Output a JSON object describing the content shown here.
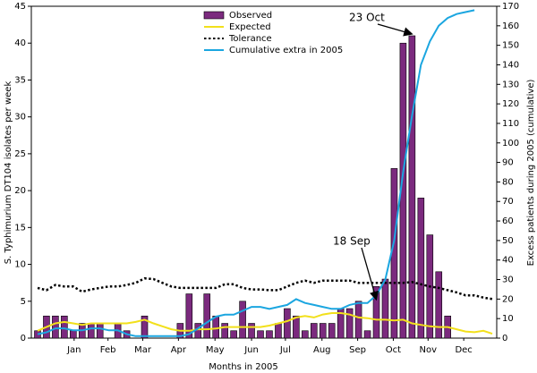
{
  "chart_data": {
    "type": "bar",
    "x_label": "Months in 2005",
    "y_label": "S. Typhimurium DT104 isolates per week",
    "y2_label": "Excess patients during 2005 (cumulative)",
    "x": [
      1,
      2,
      3,
      4,
      5,
      6,
      7,
      8,
      9,
      10,
      11,
      12,
      13,
      14,
      15,
      16,
      17,
      18,
      19,
      20,
      21,
      22,
      23,
      24,
      25,
      26,
      27,
      28,
      29,
      30,
      31,
      32,
      33,
      34,
      35,
      36,
      37,
      38,
      39,
      40,
      41,
      42,
      43,
      44,
      45,
      46,
      47,
      48,
      49,
      50,
      51,
      52
    ],
    "xlim": [
      0.3,
      52.5
    ],
    "xticks": [
      {
        "value": 5.1,
        "label": "Jan"
      },
      {
        "value": 8.9,
        "label": "Feb"
      },
      {
        "value": 12.8,
        "label": "Mar"
      },
      {
        "value": 16.8,
        "label": "Apr"
      },
      {
        "value": 20.9,
        "label": "May"
      },
      {
        "value": 25,
        "label": "Jun"
      },
      {
        "value": 28.8,
        "label": "Jul"
      },
      {
        "value": 32.9,
        "label": "Aug"
      },
      {
        "value": 36.9,
        "label": "Sep"
      },
      {
        "value": 40.9,
        "label": "Oct"
      },
      {
        "value": 44.8,
        "label": "Nov"
      },
      {
        "value": 48.8,
        "label": "Dec"
      }
    ],
    "ylim": [
      0,
      45
    ],
    "yticks": [
      0,
      5,
      10,
      15,
      20,
      25,
      30,
      35,
      40,
      45
    ],
    "y2lim": [
      0,
      170
    ],
    "y2ticks": [
      0,
      10,
      20,
      30,
      40,
      50,
      60,
      70,
      80,
      90,
      100,
      110,
      120,
      130,
      140,
      150,
      160,
      170
    ],
    "series": [
      {
        "name": "Observed",
        "kind": "bar",
        "color": "#7b2a7e",
        "values": [
          1,
          3,
          3,
          3,
          1,
          2,
          2,
          2,
          0,
          2,
          1,
          0,
          3,
          0,
          0,
          0,
          2,
          6,
          2,
          6,
          3,
          2,
          1,
          5,
          2,
          1,
          1,
          2,
          4,
          3,
          1,
          2,
          2,
          2,
          4,
          4,
          5,
          1,
          7,
          8,
          23,
          40,
          41,
          19,
          14,
          9,
          3,
          null,
          null,
          null,
          null,
          null
        ]
      },
      {
        "name": "Expected",
        "kind": "line",
        "color": "#f2e01b",
        "values": [
          1,
          1.5,
          2,
          2.2,
          2,
          1.8,
          2,
          2,
          2,
          2,
          2,
          2.2,
          2.5,
          2,
          1.6,
          1.2,
          1,
          1,
          1.2,
          1.2,
          1.3,
          1.5,
          1.5,
          1.5,
          1.5,
          1.5,
          1.7,
          2,
          2.3,
          2.8,
          3,
          2.8,
          3.2,
          3.4,
          3.4,
          3.2,
          2.8,
          2.7,
          2.5,
          2.5,
          2.4,
          2.5,
          2,
          1.8,
          1.6,
          1.5,
          1.5,
          1.2,
          0.9,
          0.8,
          1,
          0.6
        ]
      },
      {
        "name": "Tolerance",
        "kind": "dotted",
        "color": "#000000",
        "values": [
          6.8,
          6.5,
          7.2,
          7,
          7,
          6.3,
          6.6,
          6.8,
          7,
          7,
          7.2,
          7.5,
          8.1,
          8,
          7.5,
          7,
          6.8,
          6.8,
          6.8,
          6.8,
          6.8,
          7.3,
          7.3,
          6.8,
          6.6,
          6.6,
          6.5,
          6.5,
          7,
          7.5,
          7.8,
          7.5,
          7.8,
          7.8,
          7.8,
          7.8,
          7.5,
          7.5,
          7.5,
          7.5,
          7.5,
          7.5,
          7.6,
          7.3,
          7,
          6.8,
          6.5,
          6.2,
          5.8,
          5.8,
          5.5,
          5.3
        ]
      },
      {
        "name": "Cumulative extra in 2005",
        "kind": "line",
        "color": "#1ba6e0",
        "axis": "y2",
        "values": [
          2,
          3,
          5,
          5,
          4,
          4,
          5,
          5,
          4,
          4,
          2,
          1,
          1,
          1,
          1,
          1,
          1,
          2,
          5,
          8,
          11,
          12,
          12,
          14,
          16,
          16,
          15,
          16,
          17,
          20,
          18,
          17,
          16,
          15,
          15,
          17,
          18,
          18,
          22,
          30,
          50,
          85,
          114,
          140,
          152,
          160,
          164,
          166,
          167,
          168,
          null,
          null
        ]
      }
    ],
    "annotations": [
      {
        "text": "23 Oct",
        "x": 43
      },
      {
        "text": "18 Sep",
        "x": 39
      }
    ]
  }
}
